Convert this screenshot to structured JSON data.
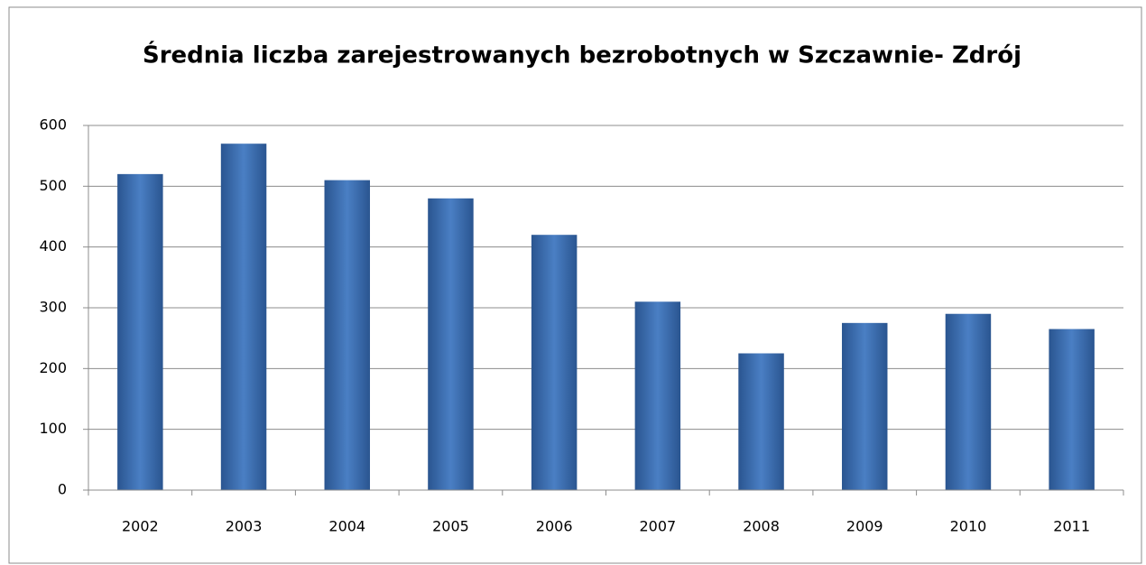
{
  "chart_data": {
    "type": "bar",
    "title": "Średnia liczba zarejestrowanych bezrobotnych w Szczawnie- Zdrój",
    "categories": [
      "2002",
      "2003",
      "2004",
      "2005",
      "2006",
      "2007",
      "2008",
      "2009",
      "2010",
      "2011"
    ],
    "values": [
      520,
      570,
      510,
      480,
      420,
      310,
      225,
      275,
      290,
      265
    ],
    "color": "#4a7fc4",
    "ylim": [
      0,
      600
    ],
    "yticks": [
      0,
      100,
      200,
      300,
      400,
      500,
      600
    ],
    "grid": true
  }
}
